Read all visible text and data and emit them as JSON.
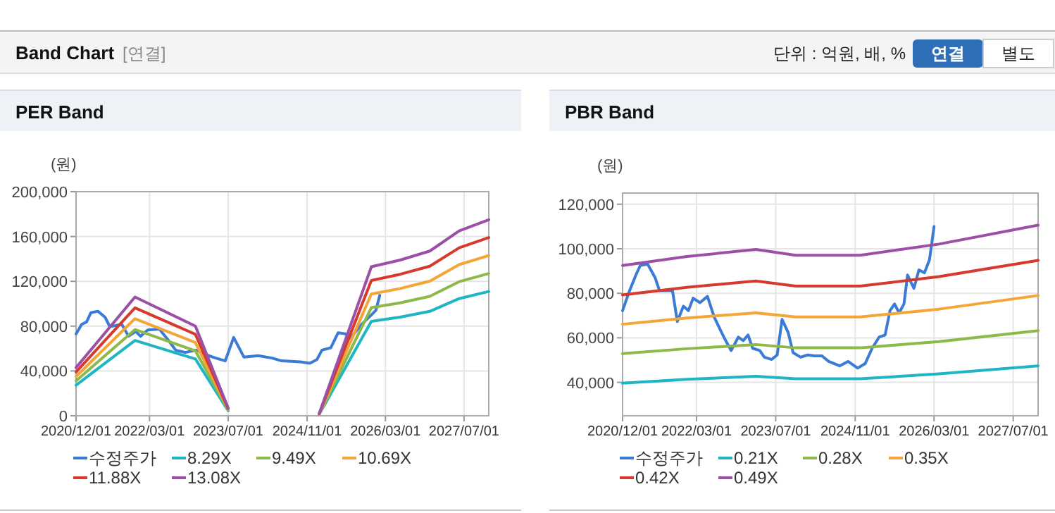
{
  "chart_data": [
    {
      "type": "line",
      "title": "PER Band",
      "ylabel": "(원)",
      "annotations": [
        "Band Chart",
        "[연결]",
        "단위 : 억원, 배, %",
        "연결",
        "별도"
      ],
      "xlim": [
        "2020-12-01",
        "2027-12-01"
      ],
      "xticks": [
        {
          "value": "2020-12-01",
          "label": "2020/12/01"
        },
        {
          "value": "2022-03-01",
          "label": "2022/03/01"
        },
        {
          "value": "2023-07-01",
          "label": "2023/07/01"
        },
        {
          "value": "2024-11-01",
          "label": "2024/11/01"
        },
        {
          "value": "2026-03-01",
          "label": "2026/03/01"
        },
        {
          "value": "2027-07-01",
          "label": "2027/07/01"
        }
      ],
      "ylim": [
        0,
        200000
      ],
      "yticks": [
        {
          "value": 0,
          "label": "0"
        },
        {
          "value": 40000,
          "label": "40,000"
        },
        {
          "value": 80000,
          "label": "80,000"
        },
        {
          "value": 120000,
          "label": "120,000"
        },
        {
          "value": 160000,
          "label": "160,000"
        },
        {
          "value": 200000,
          "label": "200,000"
        }
      ],
      "grid": true,
      "legend": "bottom",
      "marker": "none",
      "line_style": "solid",
      "series": [
        {
          "name": "수정주가",
          "color": "#3a7bd5",
          "x": [
            "2020-12-01",
            "2021-01-05",
            "2021-02-04",
            "2021-03-03",
            "2021-04-15",
            "2021-05-30",
            "2021-06-28",
            "2021-09-10",
            "2021-10-22",
            "2021-12-06",
            "2022-01-04",
            "2022-02-18",
            "2022-05-01",
            "2022-06-28",
            "2022-08-10",
            "2022-10-07",
            "2022-12-20",
            "2023-02-15",
            "2023-04-15",
            "2023-06-13",
            "2023-08-04",
            "2023-10-07",
            "2024-01-03",
            "2024-03-28",
            "2024-05-27",
            "2024-09-21",
            "2024-11-18",
            "2025-01-01",
            "2025-02-01",
            "2025-03-28",
            "2025-05-12",
            "2025-06-25",
            "2025-07-25",
            "2025-10-05",
            "2025-12-04",
            "2026-01-01",
            "2026-01-25"
          ],
          "values": [
            73000,
            81600,
            83700,
            92000,
            93300,
            87900,
            79500,
            81600,
            71000,
            75300,
            71000,
            76600,
            77400,
            67000,
            58600,
            56500,
            58600,
            54400,
            51500,
            49000,
            69900,
            52300,
            53600,
            51500,
            49000,
            48100,
            46900,
            50200,
            58600,
            60700,
            74100,
            73200,
            69000,
            81600,
            90000,
            94100,
            107500
          ]
        },
        {
          "name": "8.29X",
          "color": "#1fb5c4",
          "x": [
            "2020-12-01",
            "2021-12-01",
            "2022-12-10",
            "2023-07-01",
            "2024-03-01",
            "2025-01-15",
            "2025-12-04",
            "2026-06-01",
            "2026-12-01",
            "2027-06-01",
            "2027-12-01"
          ],
          "values": [
            27300,
            67200,
            50700,
            4400,
            null,
            1300,
            84300,
            88100,
            93200,
            104600,
            110900
          ]
        },
        {
          "name": "9.49X",
          "color": "#8db84a",
          "x": [
            "2020-12-01",
            "2021-12-01",
            "2022-12-10",
            "2023-07-01",
            "2024-03-01",
            "2025-01-15",
            "2025-12-04",
            "2026-06-01",
            "2026-12-01",
            "2027-06-01",
            "2027-12-01"
          ],
          "values": [
            31200,
            76900,
            58000,
            5100,
            null,
            1500,
            96500,
            100800,
            106600,
            119700,
            127000
          ]
        },
        {
          "name": "10.69X",
          "color": "#f5a535",
          "x": [
            "2020-12-01",
            "2021-12-01",
            "2022-12-10",
            "2023-07-01",
            "2024-03-01",
            "2025-01-15",
            "2025-12-04",
            "2026-06-01",
            "2026-12-01",
            "2027-06-01",
            "2027-12-01"
          ],
          "values": [
            35100,
            86600,
            65400,
            5700,
            null,
            1600,
            108700,
            113600,
            120100,
            134900,
            143000
          ]
        },
        {
          "name": "11.88X",
          "color": "#d63a2f",
          "x": [
            "2020-12-01",
            "2021-12-01",
            "2022-12-10",
            "2023-07-01",
            "2024-03-01",
            "2025-01-15",
            "2025-12-04",
            "2026-06-01",
            "2026-12-01",
            "2027-06-01",
            "2027-12-01"
          ],
          "values": [
            39100,
            96300,
            72700,
            6400,
            null,
            1800,
            120800,
            126300,
            133500,
            149900,
            159000
          ]
        },
        {
          "name": "13.08X",
          "color": "#9b4fa5",
          "x": [
            "2020-12-01",
            "2021-12-01",
            "2022-12-10",
            "2023-07-01",
            "2024-03-01",
            "2025-01-15",
            "2025-12-04",
            "2026-06-01",
            "2026-12-01",
            "2027-06-01",
            "2027-12-01"
          ],
          "values": [
            43000,
            106000,
            80000,
            7000,
            null,
            2000,
            133000,
            139000,
            147000,
            165000,
            175000
          ]
        }
      ]
    },
    {
      "type": "line",
      "title": "PBR Band",
      "ylabel": "(원)",
      "xlim": [
        "2020-12-01",
        "2027-12-01"
      ],
      "xticks": [
        {
          "value": "2020-12-01",
          "label": "2020/12/01"
        },
        {
          "value": "2022-03-01",
          "label": "2022/03/01"
        },
        {
          "value": "2023-07-01",
          "label": "2023/07/01"
        },
        {
          "value": "2024-11-01",
          "label": "2024/11/01"
        },
        {
          "value": "2026-03-01",
          "label": "2026/03/01"
        },
        {
          "value": "2027-07-01",
          "label": "2027/07/01"
        }
      ],
      "ylim": [
        25000,
        125000
      ],
      "yticks": [
        {
          "value": 40000,
          "label": "40,000"
        },
        {
          "value": 60000,
          "label": "60,000"
        },
        {
          "value": 80000,
          "label": "80,000"
        },
        {
          "value": 100000,
          "label": "100,000"
        },
        {
          "value": 120000,
          "label": "120,000"
        }
      ],
      "grid": true,
      "legend": "bottom",
      "marker": "none",
      "line_style": "solid",
      "series": [
        {
          "name": "수정주가",
          "color": "#3a7bd5",
          "x": [
            "2020-12-01",
            "2021-01-08",
            "2021-02-21",
            "2021-03-20",
            "2021-05-04",
            "2021-06-18",
            "2021-07-16",
            "2021-10-04",
            "2021-11-03",
            "2021-12-10",
            "2022-01-10",
            "2022-02-08",
            "2022-03-22",
            "2022-05-07",
            "2022-06-18",
            "2022-08-16",
            "2022-09-30",
            "2022-11-13",
            "2022-12-13",
            "2023-01-12",
            "2023-02-09",
            "2023-03-25",
            "2023-04-22",
            "2023-06-06",
            "2023-07-10",
            "2023-08-09",
            "2023-09-16",
            "2023-10-16",
            "2023-12-01",
            "2024-01-13",
            "2024-02-25",
            "2024-04-10",
            "2024-05-22",
            "2024-07-28",
            "2024-09-18",
            "2024-11-16",
            "2025-01-01",
            "2025-02-13",
            "2025-03-28",
            "2025-05-04",
            "2025-06-03",
            "2025-07-01",
            "2025-07-29",
            "2025-08-28",
            "2025-09-19",
            "2025-10-28",
            "2025-11-28",
            "2026-01-01",
            "2026-02-01",
            "2026-03-01"
          ],
          "values": [
            72200,
            80200,
            88200,
            92500,
            93100,
            87200,
            81200,
            81200,
            67300,
            74200,
            72200,
            77800,
            75800,
            78600,
            69300,
            60300,
            54300,
            60300,
            58700,
            61300,
            55300,
            54300,
            51300,
            50300,
            52300,
            68300,
            62300,
            53300,
            51300,
            52300,
            51900,
            51900,
            49400,
            47400,
            49400,
            46400,
            48400,
            55300,
            60300,
            61300,
            72200,
            75200,
            71200,
            75200,
            88200,
            82200,
            90500,
            89200,
            95100,
            110000
          ]
        },
        {
          "name": "0.21X",
          "color": "#1fb5c4",
          "x": [
            "2020-12-01",
            "2022-01-01",
            "2023-03-01",
            "2023-11-01",
            "2024-12-01",
            "2026-04-01",
            "2027-12-01"
          ],
          "values": [
            39600,
            41400,
            42700,
            41600,
            41600,
            43800,
            47400
          ]
        },
        {
          "name": "0.28X",
          "color": "#8db84a",
          "x": [
            "2020-12-01",
            "2022-01-01",
            "2023-03-01",
            "2023-11-01",
            "2024-12-01",
            "2026-04-01",
            "2027-12-01"
          ],
          "values": [
            52900,
            55100,
            57000,
            55500,
            55500,
            58300,
            63200
          ]
        },
        {
          "name": "0.35X",
          "color": "#f5a535",
          "x": [
            "2020-12-01",
            "2022-01-01",
            "2023-03-01",
            "2023-11-01",
            "2024-12-01",
            "2026-04-01",
            "2027-12-01"
          ],
          "values": [
            66100,
            68900,
            71200,
            69400,
            69400,
            72900,
            79000
          ]
        },
        {
          "name": "0.42X",
          "color": "#d63a2f",
          "x": [
            "2020-12-01",
            "2022-01-01",
            "2023-03-01",
            "2023-11-01",
            "2024-12-01",
            "2026-04-01",
            "2027-12-01"
          ],
          "values": [
            79300,
            82700,
            85500,
            83200,
            83200,
            87500,
            94800
          ]
        },
        {
          "name": "0.49X",
          "color": "#9b4fa5",
          "x": [
            "2020-12-01",
            "2022-01-01",
            "2023-03-01",
            "2023-11-01",
            "2024-12-01",
            "2026-04-01",
            "2027-12-01"
          ],
          "values": [
            92500,
            96500,
            99700,
            97100,
            97100,
            102100,
            110600
          ]
        }
      ]
    }
  ]
}
